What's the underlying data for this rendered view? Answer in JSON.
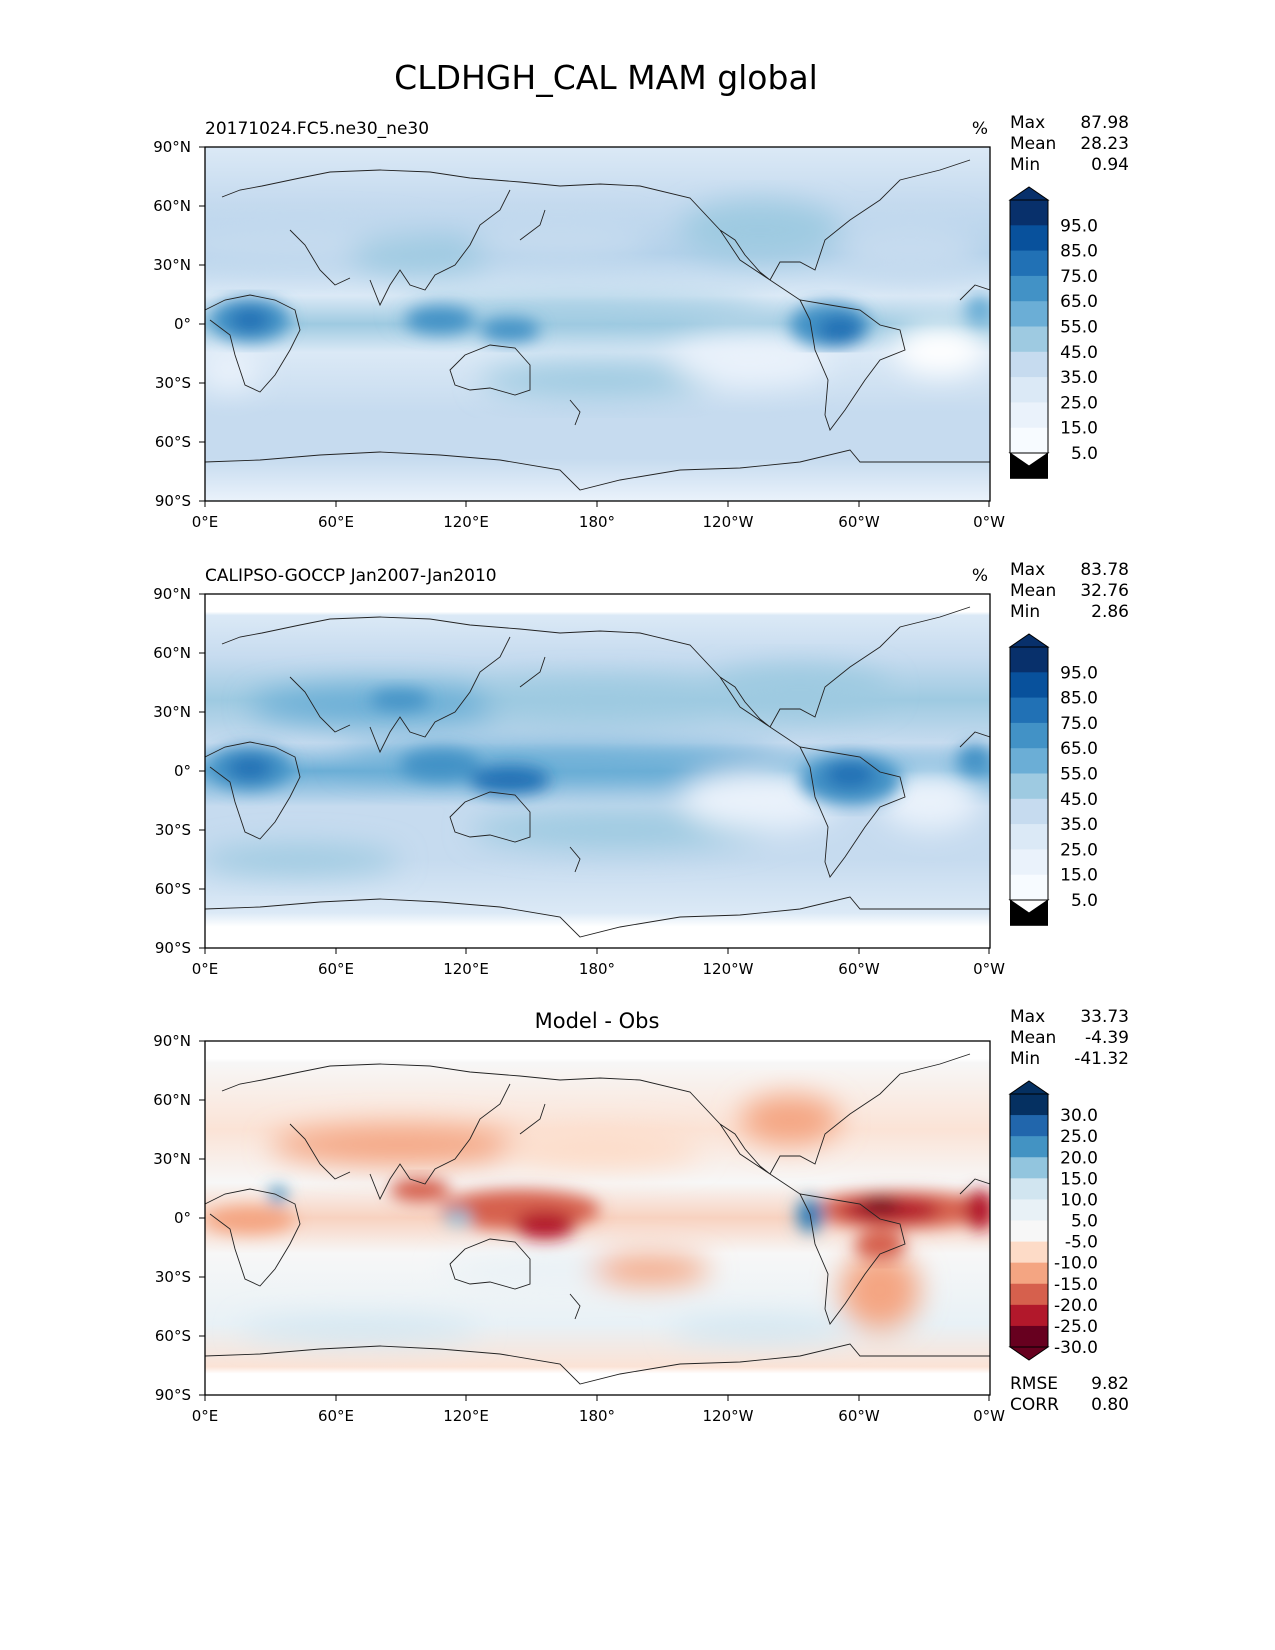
{
  "figure_title": "CLDHGH_CAL MAM global",
  "chart_data": [
    {
      "type": "heatmap",
      "subtitle_left": "20171024.FC5.ne30_ne30",
      "units": "%",
      "stats": {
        "max_label": "Max",
        "max": "87.98",
        "mean_label": "Mean",
        "mean": "28.23",
        "min_label": "Min",
        "min": "0.94"
      },
      "xticks": [
        "0°E",
        "60°E",
        "120°E",
        "180°",
        "120°W",
        "60°W",
        "0°W"
      ],
      "yticks": [
        "90°N",
        "60°N",
        "30°N",
        "0°",
        "30°S",
        "60°S",
        "90°S"
      ],
      "xlim": [
        0,
        360
      ],
      "ylim": [
        -90,
        90
      ],
      "colormap": "Blues",
      "colorbar_levels": [
        "95.0",
        "85.0",
        "75.0",
        "65.0",
        "55.0",
        "45.0",
        "35.0",
        "25.0",
        "15.0",
        "5.0"
      ],
      "colorbar_colors": [
        "#08306b",
        "#08519c",
        "#2171b5",
        "#4292c6",
        "#6baed6",
        "#9ecae1",
        "#c6dbef",
        "#dbe9f6",
        "#eaf2fb",
        "#f7fbff"
      ]
    },
    {
      "type": "heatmap",
      "subtitle_left": "CALIPSO-GOCCP Jan2007-Jan2010",
      "units": "%",
      "stats": {
        "max_label": "Max",
        "max": "83.78",
        "mean_label": "Mean",
        "mean": "32.76",
        "min_label": "Min",
        "min": "2.86"
      },
      "xticks": [
        "0°E",
        "60°E",
        "120°E",
        "180°",
        "120°W",
        "60°W",
        "0°W"
      ],
      "yticks": [
        "90°N",
        "60°N",
        "30°N",
        "0°",
        "30°S",
        "60°S",
        "90°S"
      ],
      "xlim": [
        0,
        360
      ],
      "ylim": [
        -90,
        90
      ],
      "colormap": "Blues",
      "colorbar_levels": [
        "95.0",
        "85.0",
        "75.0",
        "65.0",
        "55.0",
        "45.0",
        "35.0",
        "25.0",
        "15.0",
        "5.0"
      ],
      "colorbar_colors": [
        "#08306b",
        "#08519c",
        "#2171b5",
        "#4292c6",
        "#6baed6",
        "#9ecae1",
        "#c6dbef",
        "#dbe9f6",
        "#eaf2fb",
        "#f7fbff"
      ]
    },
    {
      "type": "heatmap",
      "title": "Model - Obs",
      "stats": {
        "max_label": "Max",
        "max": "33.73",
        "mean_label": "Mean",
        "mean": "-4.39",
        "min_label": "Min",
        "min": "-41.32"
      },
      "rmse_label": "RMSE",
      "rmse": "9.82",
      "corr_label": "CORR",
      "corr": "0.80",
      "xticks": [
        "0°E",
        "60°E",
        "120°E",
        "180°",
        "120°W",
        "60°W",
        "0°W"
      ],
      "yticks": [
        "90°N",
        "60°N",
        "30°N",
        "0°",
        "30°S",
        "60°S",
        "90°S"
      ],
      "xlim": [
        0,
        360
      ],
      "ylim": [
        -90,
        90
      ],
      "colormap": "RdBu_r",
      "colorbar_levels": [
        "30.0",
        "25.0",
        "20.0",
        "15.0",
        "10.0",
        "5.0",
        "-5.0",
        "-10.0",
        "-15.0",
        "-20.0",
        "-25.0",
        "-30.0"
      ],
      "colorbar_colors": [
        "#053061",
        "#2166ac",
        "#4393c3",
        "#92c5de",
        "#d1e5f0",
        "#e8f1f6",
        "#f7f7f7",
        "#fddbc7",
        "#f4a582",
        "#d6604d",
        "#b2182b",
        "#67001f"
      ]
    }
  ]
}
